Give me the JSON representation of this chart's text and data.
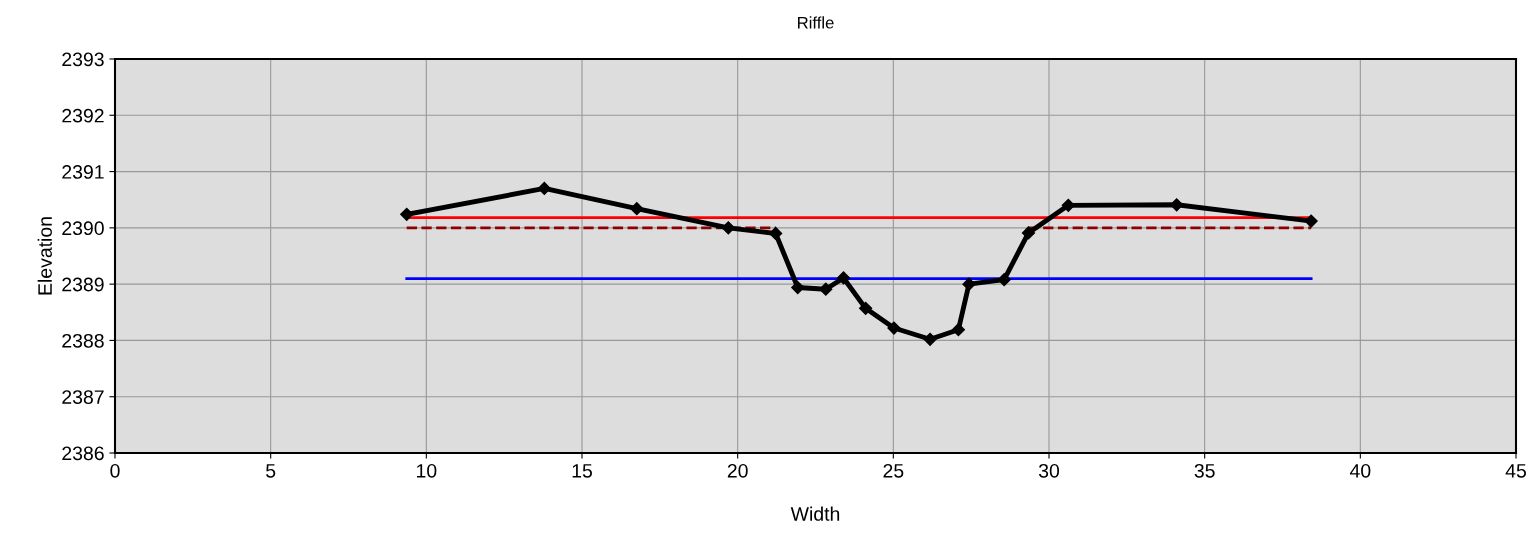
{
  "chart_data": {
    "type": "line",
    "title": "Riffle",
    "xlabel": "Width",
    "ylabel": "Elevation",
    "xlim": [
      0,
      45
    ],
    "xticks": [
      0,
      5,
      10,
      15,
      20,
      25,
      30,
      35,
      40,
      45
    ],
    "ylim": [
      2386,
      2393
    ],
    "yticks": [
      2386,
      2387,
      2388,
      2389,
      2390,
      2391,
      2392,
      2393
    ],
    "grid": true,
    "series": [
      {
        "color": "#000000",
        "marker": "diamond",
        "line_style": "solid",
        "x": [
          9.37,
          13.79,
          16.76,
          19.7,
          21.22,
          21.93,
          22.83,
          23.4,
          24.11,
          25.02,
          26.18,
          27.09,
          27.43,
          28.56,
          29.34,
          30.62,
          34.1,
          38.42
        ],
        "values": [
          2390.24,
          2390.7,
          2390.34,
          2390.0,
          2389.9,
          2388.94,
          2388.91,
          2389.11,
          2388.57,
          2388.22,
          2388.02,
          2388.19,
          2389.0,
          2389.08,
          2389.91,
          2390.4,
          2390.41,
          2390.12
        ]
      },
      {
        "color": "#ff0000",
        "marker": "none",
        "line_style": "solid",
        "x": [
          9.37,
          38.42
        ],
        "values": [
          2390.18,
          2390.18
        ]
      },
      {
        "color": "#0000ff",
        "marker": "none",
        "line_style": "solid",
        "x": [
          9.37,
          38.42
        ],
        "values": [
          2389.1,
          2389.1
        ]
      },
      {
        "color": "#8b0000",
        "marker": "none",
        "line_style": "dashed",
        "x": [
          9.37,
          21.22
        ],
        "values": [
          2390.0,
          2390.0
        ]
      },
      {
        "color": "#8b0000",
        "marker": "none",
        "line_style": "dashed",
        "x": [
          29.34,
          38.42
        ],
        "values": [
          2390.0,
          2390.0
        ]
      }
    ]
  }
}
